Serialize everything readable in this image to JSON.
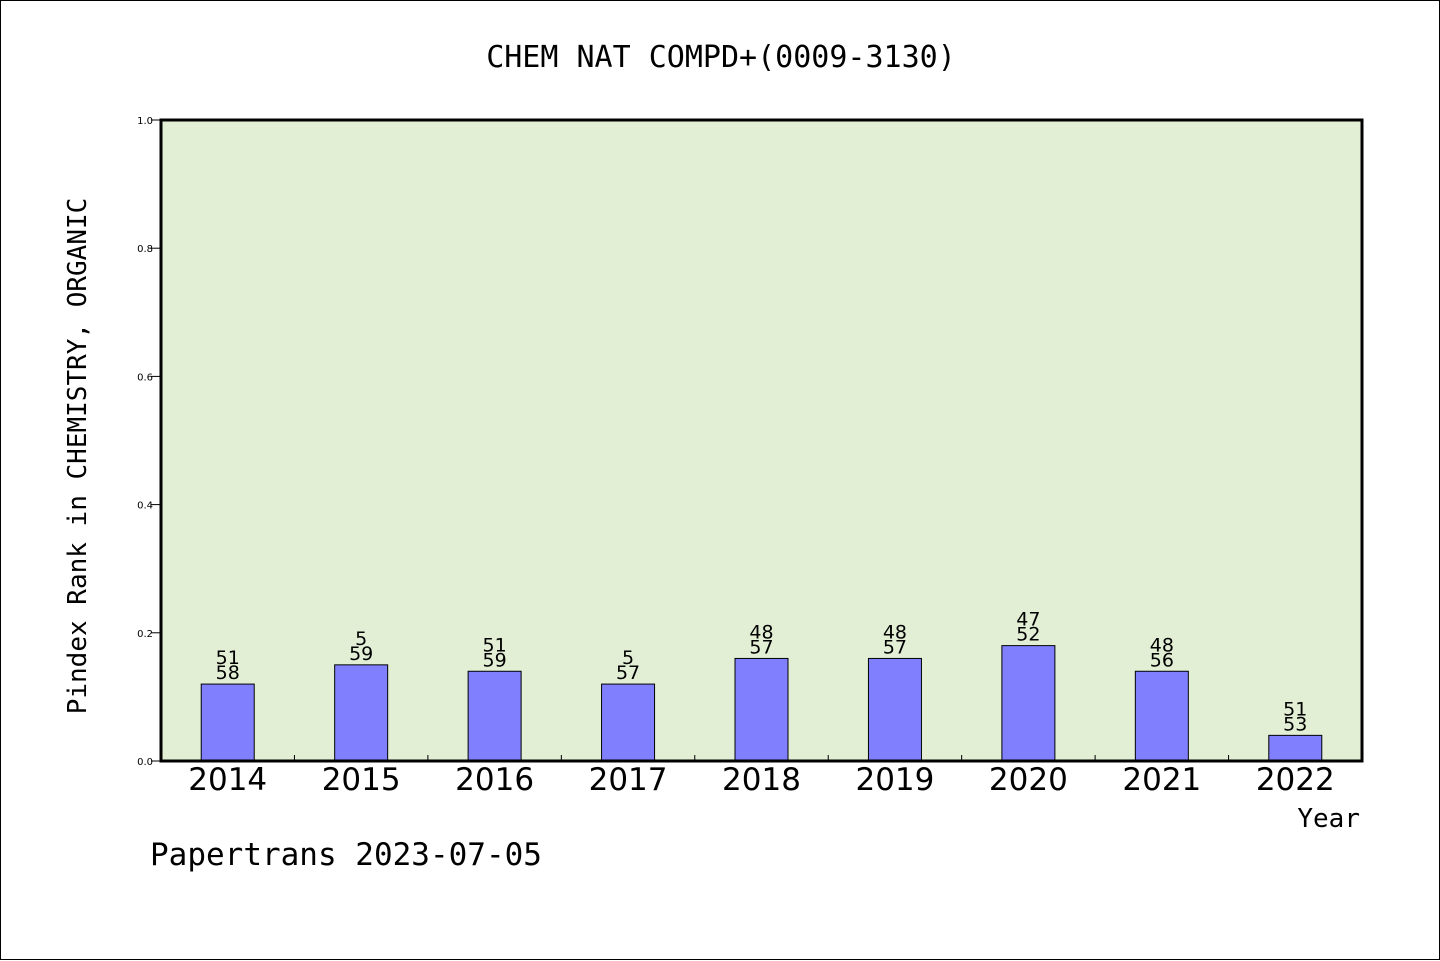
{
  "chart_data": {
    "type": "bar",
    "title": "CHEM NAT COMPD+(0009-3130)",
    "xlabel": "Year",
    "ylabel": "Pindex Rank in CHEMISTRY, ORGANIC",
    "footer": "Papertrans 2023-07-05",
    "categories": [
      "2014",
      "2015",
      "2016",
      "2017",
      "2018",
      "2019",
      "2020",
      "2021",
      "2022"
    ],
    "values": [
      0.12,
      0.15,
      0.14,
      0.12,
      0.16,
      0.16,
      0.18,
      0.14,
      0.04
    ],
    "labels_top": [
      "51",
      "5",
      "51",
      "5",
      "48",
      "48",
      "47",
      "48",
      "51"
    ],
    "labels_bottom": [
      "58",
      "59",
      "59",
      "57",
      "57",
      "57",
      "52",
      "56",
      "53"
    ],
    "ylim": [
      0.0,
      1.0
    ],
    "yticks": [
      "0.0",
      "0.2",
      "0.4",
      "0.6",
      "0.8",
      "1.0"
    ],
    "grid": false,
    "colors": {
      "plot_background": "#e2efd5",
      "bar_fill": "#8080ff",
      "bar_stroke": "#000000"
    }
  }
}
